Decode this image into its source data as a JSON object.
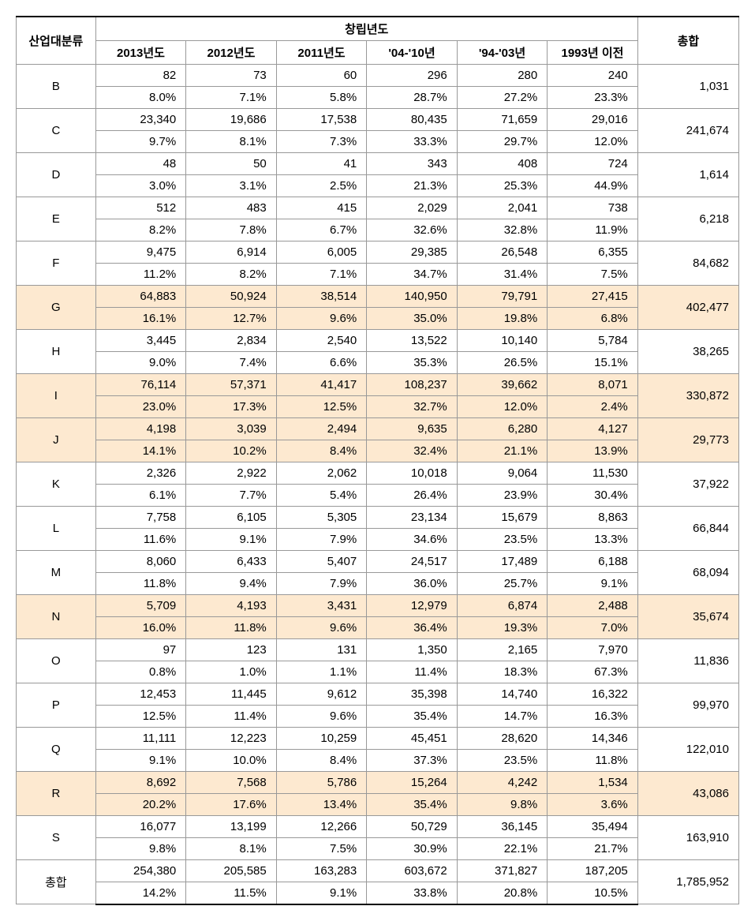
{
  "headers": {
    "category": "산업대분류",
    "year_group": "창립년도",
    "total": "총합",
    "years": [
      "2013년도",
      "2012년도",
      "2011년도",
      "'04-'10년",
      "'94-'03년",
      "1993년 이전"
    ]
  },
  "highlightRows": [
    "G",
    "I",
    "J",
    "N",
    "R"
  ],
  "highlightColor": "#fde9d0",
  "rows": [
    {
      "cat": "B",
      "vals": [
        "82",
        "73",
        "60",
        "296",
        "280",
        "240"
      ],
      "pcts": [
        "8.0%",
        "7.1%",
        "5.8%",
        "28.7%",
        "27.2%",
        "23.3%"
      ],
      "total": "1,031"
    },
    {
      "cat": "C",
      "vals": [
        "23,340",
        "19,686",
        "17,538",
        "80,435",
        "71,659",
        "29,016"
      ],
      "pcts": [
        "9.7%",
        "8.1%",
        "7.3%",
        "33.3%",
        "29.7%",
        "12.0%"
      ],
      "total": "241,674"
    },
    {
      "cat": "D",
      "vals": [
        "48",
        "50",
        "41",
        "343",
        "408",
        "724"
      ],
      "pcts": [
        "3.0%",
        "3.1%",
        "2.5%",
        "21.3%",
        "25.3%",
        "44.9%"
      ],
      "total": "1,614"
    },
    {
      "cat": "E",
      "vals": [
        "512",
        "483",
        "415",
        "2,029",
        "2,041",
        "738"
      ],
      "pcts": [
        "8.2%",
        "7.8%",
        "6.7%",
        "32.6%",
        "32.8%",
        "11.9%"
      ],
      "total": "6,218"
    },
    {
      "cat": "F",
      "vals": [
        "9,475",
        "6,914",
        "6,005",
        "29,385",
        "26,548",
        "6,355"
      ],
      "pcts": [
        "11.2%",
        "8.2%",
        "7.1%",
        "34.7%",
        "31.4%",
        "7.5%"
      ],
      "total": "84,682"
    },
    {
      "cat": "G",
      "vals": [
        "64,883",
        "50,924",
        "38,514",
        "140,950",
        "79,791",
        "27,415"
      ],
      "pcts": [
        "16.1%",
        "12.7%",
        "9.6%",
        "35.0%",
        "19.8%",
        "6.8%"
      ],
      "total": "402,477"
    },
    {
      "cat": "H",
      "vals": [
        "3,445",
        "2,834",
        "2,540",
        "13,522",
        "10,140",
        "5,784"
      ],
      "pcts": [
        "9.0%",
        "7.4%",
        "6.6%",
        "35.3%",
        "26.5%",
        "15.1%"
      ],
      "total": "38,265"
    },
    {
      "cat": "I",
      "vals": [
        "76,114",
        "57,371",
        "41,417",
        "108,237",
        "39,662",
        "8,071"
      ],
      "pcts": [
        "23.0%",
        "17.3%",
        "12.5%",
        "32.7%",
        "12.0%",
        "2.4%"
      ],
      "total": "330,872"
    },
    {
      "cat": "J",
      "vals": [
        "4,198",
        "3,039",
        "2,494",
        "9,635",
        "6,280",
        "4,127"
      ],
      "pcts": [
        "14.1%",
        "10.2%",
        "8.4%",
        "32.4%",
        "21.1%",
        "13.9%"
      ],
      "total": "29,773"
    },
    {
      "cat": "K",
      "vals": [
        "2,326",
        "2,922",
        "2,062",
        "10,018",
        "9,064",
        "11,530"
      ],
      "pcts": [
        "6.1%",
        "7.7%",
        "5.4%",
        "26.4%",
        "23.9%",
        "30.4%"
      ],
      "total": "37,922"
    },
    {
      "cat": "L",
      "vals": [
        "7,758",
        "6,105",
        "5,305",
        "23,134",
        "15,679",
        "8,863"
      ],
      "pcts": [
        "11.6%",
        "9.1%",
        "7.9%",
        "34.6%",
        "23.5%",
        "13.3%"
      ],
      "total": "66,844"
    },
    {
      "cat": "M",
      "vals": [
        "8,060",
        "6,433",
        "5,407",
        "24,517",
        "17,489",
        "6,188"
      ],
      "pcts": [
        "11.8%",
        "9.4%",
        "7.9%",
        "36.0%",
        "25.7%",
        "9.1%"
      ],
      "total": "68,094"
    },
    {
      "cat": "N",
      "vals": [
        "5,709",
        "4,193",
        "3,431",
        "12,979",
        "6,874",
        "2,488"
      ],
      "pcts": [
        "16.0%",
        "11.8%",
        "9.6%",
        "36.4%",
        "19.3%",
        "7.0%"
      ],
      "total": "35,674"
    },
    {
      "cat": "O",
      "vals": [
        "97",
        "123",
        "131",
        "1,350",
        "2,165",
        "7,970"
      ],
      "pcts": [
        "0.8%",
        "1.0%",
        "1.1%",
        "11.4%",
        "18.3%",
        "67.3%"
      ],
      "total": "11,836"
    },
    {
      "cat": "P",
      "vals": [
        "12,453",
        "11,445",
        "9,612",
        "35,398",
        "14,740",
        "16,322"
      ],
      "pcts": [
        "12.5%",
        "11.4%",
        "9.6%",
        "35.4%",
        "14.7%",
        "16.3%"
      ],
      "total": "99,970"
    },
    {
      "cat": "Q",
      "vals": [
        "11,111",
        "12,223",
        "10,259",
        "45,451",
        "28,620",
        "14,346"
      ],
      "pcts": [
        "9.1%",
        "10.0%",
        "8.4%",
        "37.3%",
        "23.5%",
        "11.8%"
      ],
      "total": "122,010"
    },
    {
      "cat": "R",
      "vals": [
        "8,692",
        "7,568",
        "5,786",
        "15,264",
        "4,242",
        "1,534"
      ],
      "pcts": [
        "20.2%",
        "17.6%",
        "13.4%",
        "35.4%",
        "9.8%",
        "3.6%"
      ],
      "total": "43,086"
    },
    {
      "cat": "S",
      "vals": [
        "16,077",
        "13,199",
        "12,266",
        "50,729",
        "36,145",
        "35,494"
      ],
      "pcts": [
        "9.8%",
        "8.1%",
        "7.5%",
        "30.9%",
        "22.1%",
        "21.7%"
      ],
      "total": "163,910"
    },
    {
      "cat": "총합",
      "vals": [
        "254,380",
        "205,585",
        "163,283",
        "603,672",
        "371,827",
        "187,205"
      ],
      "pcts": [
        "14.2%",
        "11.5%",
        "9.1%",
        "33.8%",
        "20.8%",
        "10.5%"
      ],
      "total": "1,785,952"
    }
  ]
}
